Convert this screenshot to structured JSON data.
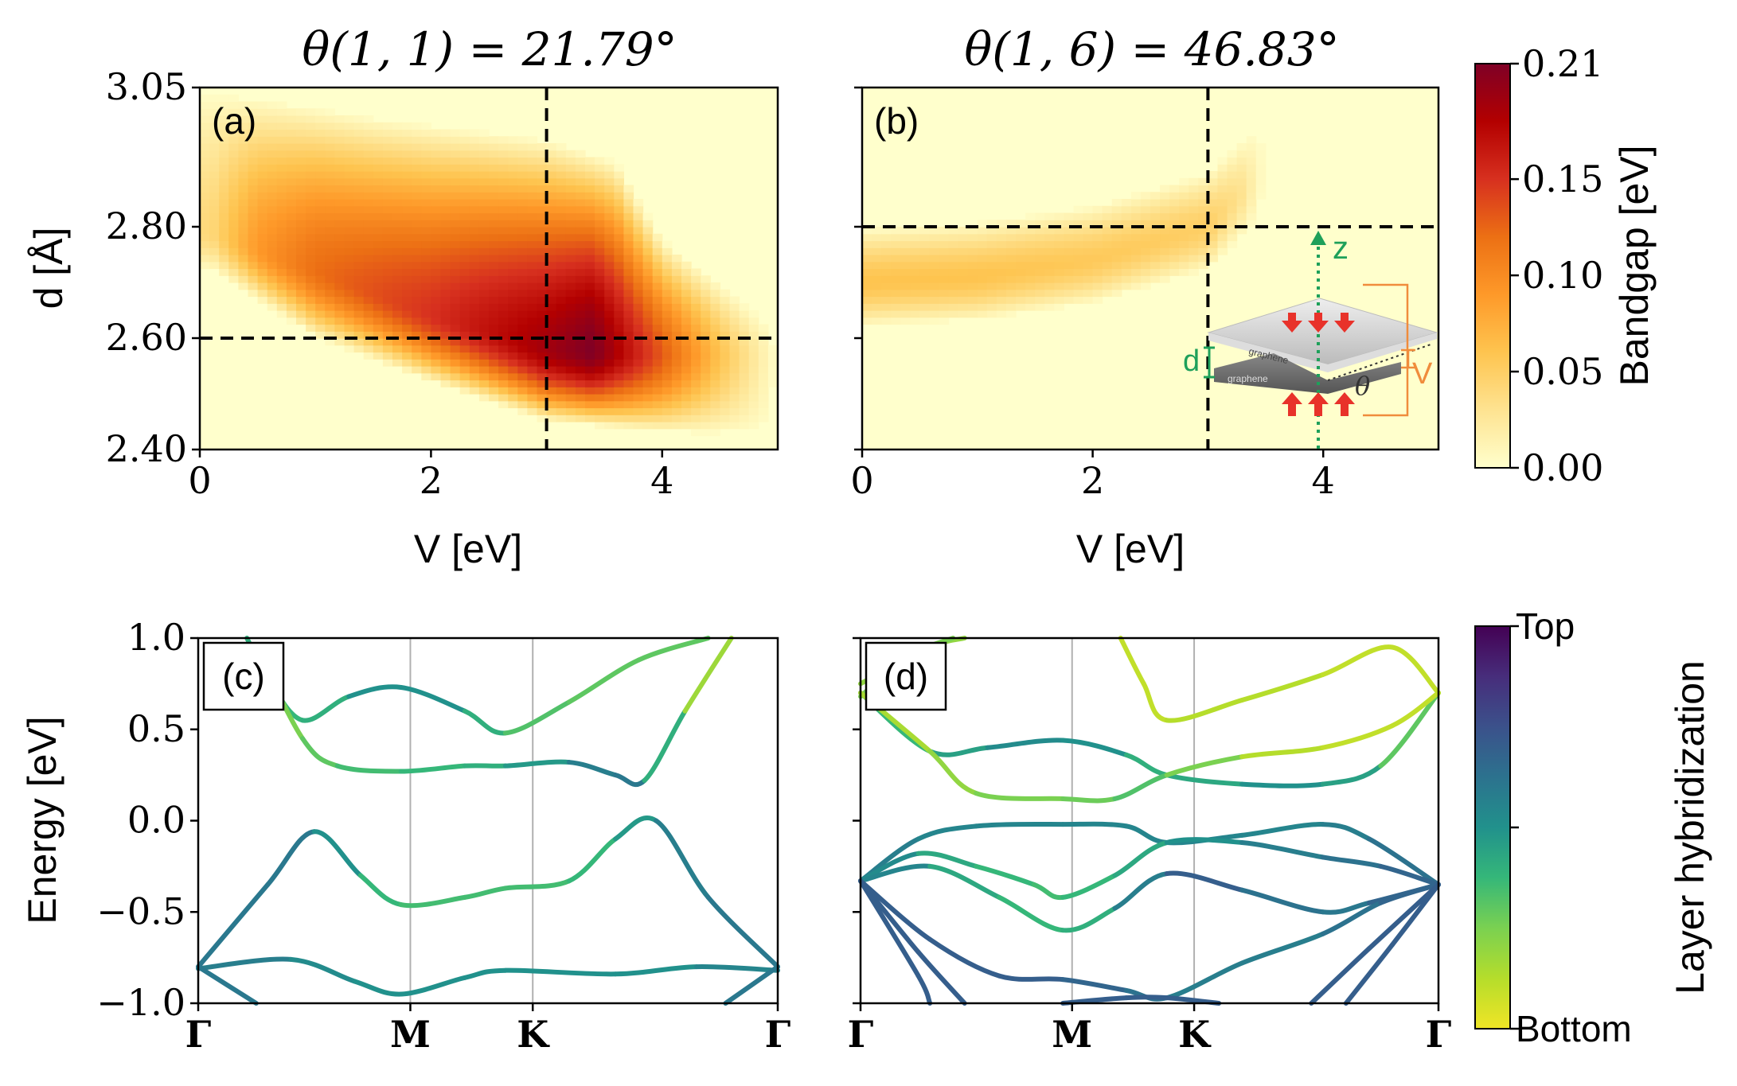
{
  "figure": {
    "titles": [
      "θ(1, 1) = 21.79°",
      "θ(1, 6) = 46.83°"
    ],
    "panel_labels": [
      "(a)",
      "(b)",
      "(c)",
      "(d)"
    ]
  },
  "colors": {
    "heat_scale": [
      "#ffffcc",
      "#fee391",
      "#fec44f",
      "#fe9929",
      "#ec7014",
      "#d7301f",
      "#b30000",
      "#7f0026"
    ],
    "viridis_scale": [
      "#f0e526",
      "#b5dd2b",
      "#7ad151",
      "#35b779",
      "#21918c",
      "#2c728e",
      "#3b518b",
      "#472d7b",
      "#440154"
    ],
    "guide_line": "#000000",
    "kpath_line": "#b0b0b0",
    "inset_green": "#1ea05a",
    "inset_orange": "#f08c3c",
    "inset_red": "#e8322a"
  },
  "chart_data": [
    {
      "type": "heatmap",
      "panel": "(a)",
      "title": "θ(1, 1) = 21.79°",
      "xlabel": "V [eV]",
      "ylabel": "d [Å]",
      "xlim": [
        0,
        5
      ],
      "ylim": [
        2.4,
        3.05
      ],
      "xticks": [
        "0",
        "2",
        "4"
      ],
      "yticks": [
        "2.40",
        "2.60",
        "2.80",
        "3.05"
      ],
      "guides": {
        "V": 3.0,
        "d": 2.6
      },
      "gap_region": {
        "ridge_d": [
          [
            0.1,
            2.79
          ],
          [
            1.0,
            2.72
          ],
          [
            2.0,
            2.64
          ],
          [
            3.0,
            2.58
          ],
          [
            4.0,
            2.57
          ],
          [
            5.0,
            2.57
          ]
        ],
        "peak_gap": [
          [
            0.1,
            0.04
          ],
          [
            0.5,
            0.09
          ],
          [
            1.0,
            0.12
          ],
          [
            2.0,
            0.15
          ],
          [
            3.0,
            0.19
          ],
          [
            3.4,
            0.21
          ],
          [
            4.0,
            0.13
          ],
          [
            4.5,
            0.06
          ],
          [
            5.0,
            0.0
          ]
        ],
        "upper_edge_d": [
          [
            0.1,
            3.05
          ],
          [
            1.5,
            3.0
          ],
          [
            3.0,
            2.96
          ],
          [
            3.6,
            2.92
          ],
          [
            4.0,
            2.78
          ],
          [
            5.0,
            2.62
          ]
        ],
        "lower_edge_d": [
          [
            0.1,
            2.72
          ],
          [
            1.0,
            2.6
          ],
          [
            2.0,
            2.52
          ],
          [
            3.0,
            2.45
          ],
          [
            4.0,
            2.43
          ],
          [
            5.0,
            2.42
          ]
        ]
      }
    },
    {
      "type": "heatmap",
      "panel": "(b)",
      "title": "θ(1, 6) = 46.83°",
      "xlabel": "V [eV]",
      "xlim": [
        0,
        5
      ],
      "ylim": [
        2.4,
        3.05
      ],
      "xticks": [
        "0",
        "2",
        "4"
      ],
      "guides": {
        "V": 3.0,
        "d": 2.8
      },
      "gap_region": {
        "ridge_d": [
          [
            0.0,
            2.7
          ],
          [
            1.0,
            2.71
          ],
          [
            2.0,
            2.74
          ],
          [
            3.0,
            2.8
          ],
          [
            3.5,
            2.9
          ]
        ],
        "peak_gap": [
          [
            0.0,
            0.06
          ],
          [
            1.0,
            0.06
          ],
          [
            2.0,
            0.055
          ],
          [
            3.0,
            0.05
          ],
          [
            3.3,
            0.03
          ],
          [
            3.5,
            0.0
          ]
        ]
      },
      "inset": {
        "labels": [
          "z",
          "d",
          "V",
          "θ",
          "graphene",
          "graphene"
        ]
      }
    },
    {
      "type": "line",
      "panel": "(c)",
      "ylabel": "Energy [eV]",
      "ylim": [
        -1.0,
        1.0
      ],
      "yticks": [
        "1.0",
        "0.5",
        "0.0",
        "−0.5",
        "−1.0"
      ],
      "kpath": [
        "Γ",
        "M",
        "K",
        "Γ"
      ],
      "kpath_positions": [
        0,
        1.0,
        0.577,
        1.155
      ],
      "series": [
        {
          "points": [
            [
              0.42,
              1.0
            ],
            [
              0.6,
              0.78
            ],
            [
              0.9,
              0.55
            ],
            [
              1.3,
              0.68
            ],
            [
              1.75,
              0.73
            ],
            [
              2.3,
              0.6
            ],
            [
              2.65,
              0.48
            ],
            [
              3.2,
              0.65
            ],
            [
              3.8,
              0.88
            ],
            [
              4.4,
              1.0
            ]
          ],
          "h": [
            0.4,
            0.4,
            0.35,
            0.45,
            0.55,
            0.45,
            0.35,
            0.3,
            0.3,
            0.3
          ]
        },
        {
          "points": [
            [
              0.5,
              0.95
            ],
            [
              0.9,
              0.45
            ],
            [
              1.2,
              0.3
            ],
            [
              1.75,
              0.27
            ],
            [
              2.3,
              0.3
            ],
            [
              2.65,
              0.3
            ],
            [
              3.2,
              0.32
            ],
            [
              3.6,
              0.25
            ],
            [
              3.85,
              0.22
            ],
            [
              4.2,
              0.6
            ],
            [
              4.6,
              1.0
            ]
          ],
          "h": [
            0.25,
            0.25,
            0.35,
            0.35,
            0.4,
            0.4,
            0.55,
            0.6,
            0.6,
            0.2,
            0.15
          ]
        },
        {
          "points": [
            [
              0.0,
              -0.8
            ],
            [
              0.6,
              -0.35
            ],
            [
              1.0,
              -0.06
            ],
            [
              1.4,
              -0.3
            ],
            [
              1.75,
              -0.46
            ],
            [
              2.3,
              -0.42
            ],
            [
              2.65,
              -0.37
            ],
            [
              3.2,
              -0.33
            ],
            [
              3.6,
              -0.1
            ],
            [
              3.95,
              0.0
            ],
            [
              4.4,
              -0.42
            ],
            [
              5.0,
              -0.8
            ]
          ],
          "h": [
            0.6,
            0.6,
            0.6,
            0.4,
            0.35,
            0.35,
            0.35,
            0.35,
            0.4,
            0.55,
            0.6,
            0.6
          ]
        },
        {
          "points": [
            [
              0.0,
              -0.81
            ],
            [
              0.8,
              -0.76
            ],
            [
              1.35,
              -0.88
            ],
            [
              1.75,
              -0.95
            ],
            [
              2.3,
              -0.86
            ],
            [
              2.65,
              -0.82
            ],
            [
              3.6,
              -0.84
            ],
            [
              4.3,
              -0.8
            ],
            [
              5.0,
              -0.82
            ]
          ],
          "h": [
            0.6,
            0.55,
            0.5,
            0.5,
            0.5,
            0.5,
            0.5,
            0.5,
            0.6
          ]
        },
        {
          "points": [
            [
              0.0,
              -0.8
            ],
            [
              0.5,
              -1.0
            ]
          ],
          "h": [
            0.6,
            0.6
          ]
        },
        {
          "points": [
            [
              4.55,
              -1.0
            ],
            [
              5.0,
              -0.8
            ]
          ],
          "h": [
            0.6,
            0.6
          ]
        }
      ]
    },
    {
      "type": "line",
      "panel": "(d)",
      "ylim": [
        -1.0,
        1.0
      ],
      "kpath": [
        "Γ",
        "M",
        "K",
        "Γ"
      ],
      "kpath_positions": [
        0,
        1.0,
        0.577,
        1.155
      ],
      "series": [
        {
          "points": [
            [
              0.0,
              0.75
            ],
            [
              0.6,
              0.95
            ],
            [
              0.9,
              1.0
            ]
          ],
          "h": [
            0.2,
            0.2,
            0.2
          ]
        },
        {
          "points": [
            [
              0.0,
              0.68
            ],
            [
              0.4,
              0.9
            ],
            [
              0.8,
              1.0
            ]
          ],
          "h": [
            0.25,
            0.25,
            0.25
          ]
        },
        {
          "points": [
            [
              2.25,
              1.0
            ],
            [
              2.45,
              0.75
            ],
            [
              2.65,
              0.55
            ],
            [
              3.3,
              0.66
            ],
            [
              4.0,
              0.8
            ],
            [
              4.6,
              0.95
            ],
            [
              5.0,
              0.7
            ]
          ],
          "h": [
            0.1,
            0.1,
            0.1,
            0.15,
            0.1,
            0.1,
            0.1
          ]
        },
        {
          "points": [
            [
              0.0,
              0.7
            ],
            [
              0.6,
              0.38
            ],
            [
              1.1,
              0.4
            ],
            [
              1.75,
              0.44
            ],
            [
              2.3,
              0.36
            ],
            [
              2.65,
              0.25
            ],
            [
              3.3,
              0.2
            ],
            [
              4.0,
              0.2
            ],
            [
              4.5,
              0.3
            ],
            [
              5.0,
              0.7
            ]
          ],
          "h": [
            0.35,
            0.4,
            0.5,
            0.55,
            0.45,
            0.35,
            0.5,
            0.5,
            0.4,
            0.2
          ]
        },
        {
          "points": [
            [
              0.0,
              0.7
            ],
            [
              0.6,
              0.38
            ],
            [
              1.0,
              0.15
            ],
            [
              1.75,
              0.12
            ],
            [
              2.2,
              0.12
            ],
            [
              2.65,
              0.25
            ],
            [
              3.3,
              0.35
            ],
            [
              4.0,
              0.4
            ],
            [
              4.6,
              0.52
            ],
            [
              5.0,
              0.7
            ]
          ],
          "h": [
            0.15,
            0.15,
            0.25,
            0.25,
            0.3,
            0.35,
            0.15,
            0.1,
            0.1,
            0.1
          ]
        },
        {
          "points": [
            [
              0.0,
              -0.33
            ],
            [
              0.5,
              -0.1
            ],
            [
              1.0,
              -0.03
            ],
            [
              1.75,
              -0.02
            ],
            [
              2.3,
              -0.03
            ],
            [
              2.65,
              -0.12
            ],
            [
              3.3,
              -0.08
            ],
            [
              4.0,
              -0.02
            ],
            [
              4.4,
              -0.1
            ],
            [
              5.0,
              -0.35
            ]
          ],
          "h": [
            0.6,
            0.55,
            0.55,
            0.55,
            0.55,
            0.55,
            0.55,
            0.55,
            0.6,
            0.65
          ]
        },
        {
          "points": [
            [
              0.0,
              -0.33
            ],
            [
              0.5,
              -0.18
            ],
            [
              1.0,
              -0.25
            ],
            [
              1.5,
              -0.35
            ],
            [
              1.75,
              -0.42
            ],
            [
              2.2,
              -0.3
            ],
            [
              2.65,
              -0.12
            ],
            [
              3.3,
              -0.12
            ],
            [
              4.0,
              -0.2
            ],
            [
              4.5,
              -0.25
            ],
            [
              5.0,
              -0.35
            ]
          ],
          "h": [
            0.6,
            0.45,
            0.4,
            0.35,
            0.35,
            0.4,
            0.45,
            0.55,
            0.6,
            0.65,
            0.7
          ]
        },
        {
          "points": [
            [
              0.0,
              -0.33
            ],
            [
              0.6,
              -0.25
            ],
            [
              1.2,
              -0.42
            ],
            [
              1.75,
              -0.6
            ],
            [
              2.2,
              -0.48
            ],
            [
              2.65,
              -0.29
            ],
            [
              3.3,
              -0.38
            ],
            [
              4.0,
              -0.5
            ],
            [
              4.4,
              -0.45
            ],
            [
              5.0,
              -0.35
            ]
          ],
          "h": [
            0.65,
            0.45,
            0.4,
            0.35,
            0.45,
            0.7,
            0.7,
            0.55,
            0.65,
            0.7
          ]
        },
        {
          "points": [
            [
              0.0,
              -0.33
            ],
            [
              0.6,
              -0.65
            ],
            [
              1.2,
              -0.85
            ],
            [
              1.75,
              -0.87
            ],
            [
              2.3,
              -0.93
            ],
            [
              2.65,
              -0.97
            ],
            [
              3.3,
              -0.78
            ],
            [
              4.0,
              -0.62
            ],
            [
              4.5,
              -0.45
            ],
            [
              5.0,
              -0.35
            ]
          ],
          "h": [
            0.7,
            0.7,
            0.7,
            0.7,
            0.65,
            0.6,
            0.55,
            0.6,
            0.65,
            0.7
          ]
        },
        {
          "points": [
            [
              0.0,
              -0.33
            ],
            [
              0.5,
              -0.72
            ],
            [
              0.9,
              -1.0
            ]
          ],
          "h": [
            0.7,
            0.7,
            0.7
          ]
        },
        {
          "points": [
            [
              0.0,
              -0.33
            ],
            [
              0.5,
              -0.85
            ],
            [
              0.6,
              -1.0
            ]
          ],
          "h": [
            0.7,
            0.7,
            0.7
          ]
        },
        {
          "points": [
            [
              1.75,
              -1.0
            ],
            [
              2.3,
              -0.97
            ],
            [
              2.65,
              -0.97
            ],
            [
              3.1,
              -1.0
            ]
          ],
          "h": [
            0.7,
            0.7,
            0.7,
            0.7
          ]
        },
        {
          "points": [
            [
              3.9,
              -1.0
            ],
            [
              4.4,
              -0.7
            ],
            [
              5.0,
              -0.35
            ]
          ],
          "h": [
            0.7,
            0.7,
            0.7
          ]
        },
        {
          "points": [
            [
              4.2,
              -1.0
            ],
            [
              4.6,
              -0.68
            ],
            [
              5.0,
              -0.35
            ]
          ],
          "h": [
            0.7,
            0.7,
            0.7
          ]
        }
      ]
    },
    {
      "type": "colorbar",
      "label": "Bandgap [eV]",
      "range": [
        0.0,
        0.21
      ],
      "ticks": [
        "0.00",
        "0.05",
        "0.10",
        "0.15",
        "0.21"
      ],
      "tick_values": [
        0.0,
        0.05,
        0.1,
        0.15,
        0.21
      ]
    },
    {
      "type": "colorbar",
      "label": "Layer hybridization",
      "ticks": [
        "Bottom",
        "Top"
      ],
      "tick_values": [
        0,
        1
      ],
      "extra_ticks": [
        0.5
      ]
    }
  ]
}
